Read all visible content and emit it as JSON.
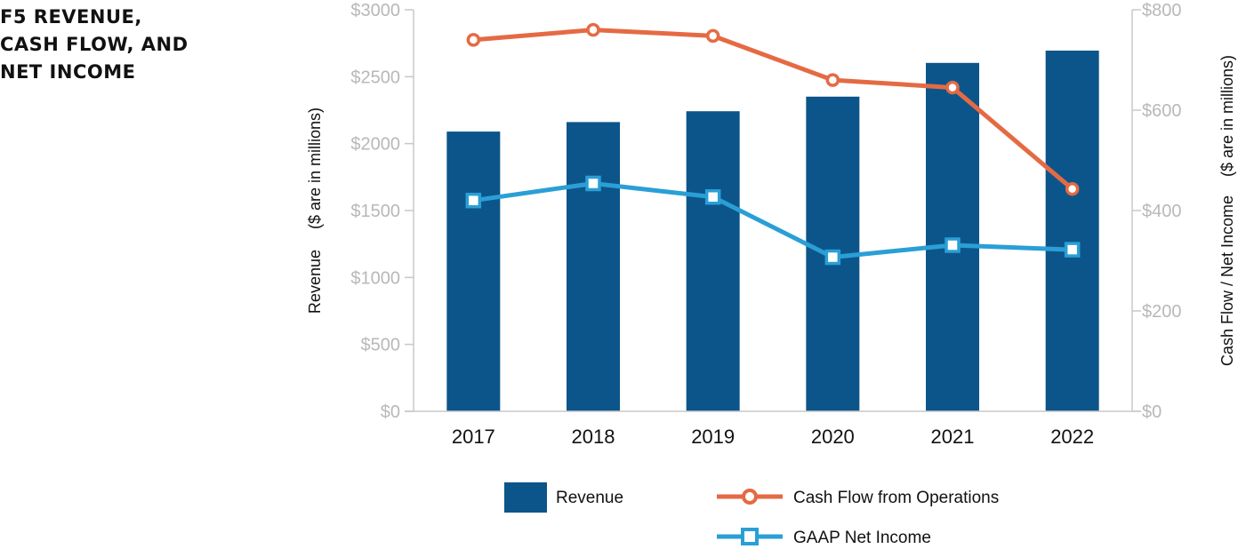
{
  "chart_data": {
    "type": "bar",
    "title": "F5 REVENUE,\nCASH FLOW, AND\nNET INCOME",
    "categories": [
      "2017",
      "2018",
      "2019",
      "2020",
      "2021",
      "2022"
    ],
    "series": [
      {
        "name": "Revenue",
        "kind": "bar",
        "axis": "left",
        "color": "#0c558a",
        "values": [
          2090,
          2161,
          2242,
          2351,
          2603,
          2695
        ]
      },
      {
        "name": "Cash Flow from Operations",
        "kind": "line",
        "marker": "circle",
        "axis": "right",
        "color": "#e56a43",
        "values": [
          740,
          760,
          748,
          660,
          645,
          443
        ]
      },
      {
        "name": "GAAP Net Income",
        "kind": "line",
        "marker": "square",
        "axis": "right",
        "color": "#2a9fd6",
        "values": [
          420,
          454,
          427,
          307,
          331,
          322
        ]
      }
    ],
    "y_left": {
      "label_main": "Revenue",
      "label_sub": "($ are in millions)",
      "range": [
        0,
        3000
      ],
      "ticks": [
        "$0",
        "$500",
        "$1000",
        "$1500",
        "$2000",
        "$2500",
        "$3000"
      ]
    },
    "y_right": {
      "label_main": "Cash Flow / Net Income",
      "label_sub": "($ are in millions)",
      "range": [
        0,
        800
      ],
      "ticks": [
        "$0",
        "$200",
        "$400",
        "$600",
        "$800"
      ]
    },
    "grid": false,
    "legend_position": "bottom"
  }
}
